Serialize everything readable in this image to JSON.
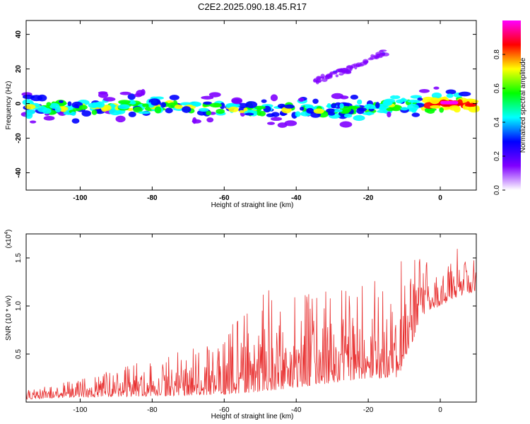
{
  "title": "C2E2.2025.090.18.45.R17",
  "chart_data": [
    {
      "type": "heatmap",
      "xlabel": "Height of straight line (km)",
      "ylabel": "Frequency (Hz)",
      "xlim": [
        -115,
        10
      ],
      "ylim": [
        -50,
        48
      ],
      "x_ticks": [
        -100,
        -80,
        -60,
        -40,
        -20,
        0
      ],
      "y_ticks": [
        -40,
        -20,
        0,
        20,
        40
      ],
      "colorbar": {
        "label": "Normalized spectral amplitude",
        "range": [
          0,
          1
        ],
        "ticks": [
          0.0,
          0.2,
          0.4,
          0.6,
          0.8
        ],
        "tick_labels": [
          "0.0",
          "0.2",
          "0.4",
          "0.6",
          "0.8"
        ],
        "colors": [
          "#ffffff",
          "#8000ff",
          "#0000ff",
          "#00ffff",
          "#00ff00",
          "#ffff00",
          "#ff0000",
          "#ff00ff"
        ]
      },
      "ridges": [
        {
          "x": [
            -115,
            -100,
            -80,
            -60,
            -40,
            -20,
            -10,
            0,
            10
          ],
          "y": [
            -2,
            -3,
            -1,
            -3,
            -4,
            -3,
            -1,
            0,
            -1
          ],
          "peak_amplitude": 0.9
        },
        {
          "x": [
            -35,
            -25,
            -15
          ],
          "y": [
            13,
            20,
            30
          ],
          "peak_amplitude": 0.25
        }
      ]
    },
    {
      "type": "line",
      "xlabel": "Height of straight line (km)",
      "ylabel": "SNR (10 * v/v)",
      "y_multiplier": "(x10",
      "y_multiplier_exp": "4",
      "xlim": [
        -115,
        10
      ],
      "ylim": [
        0,
        17500
      ],
      "x_ticks": [
        -100,
        -80,
        -60,
        -40,
        -20,
        0
      ],
      "y_ticks": [
        5000,
        10000,
        15000
      ],
      "y_tick_labels": [
        "0.5",
        "1.0",
        "1.5"
      ],
      "color": "#e83030",
      "envelope": {
        "x": [
          -115,
          -100,
          -80,
          -60,
          -52,
          -40,
          -30,
          -20,
          -12,
          -10,
          -5,
          0,
          5,
          10
        ],
        "base": [
          300,
          500,
          600,
          800,
          1000,
          1500,
          2000,
          2500,
          2500,
          4000,
          9000,
          10000,
          11000,
          11500
        ],
        "peak": [
          1200,
          2500,
          4500,
          6500,
          12000,
          11000,
          12000,
          13000,
          12000,
          17000,
          15500,
          14000,
          16500,
          15000
        ]
      }
    }
  ]
}
